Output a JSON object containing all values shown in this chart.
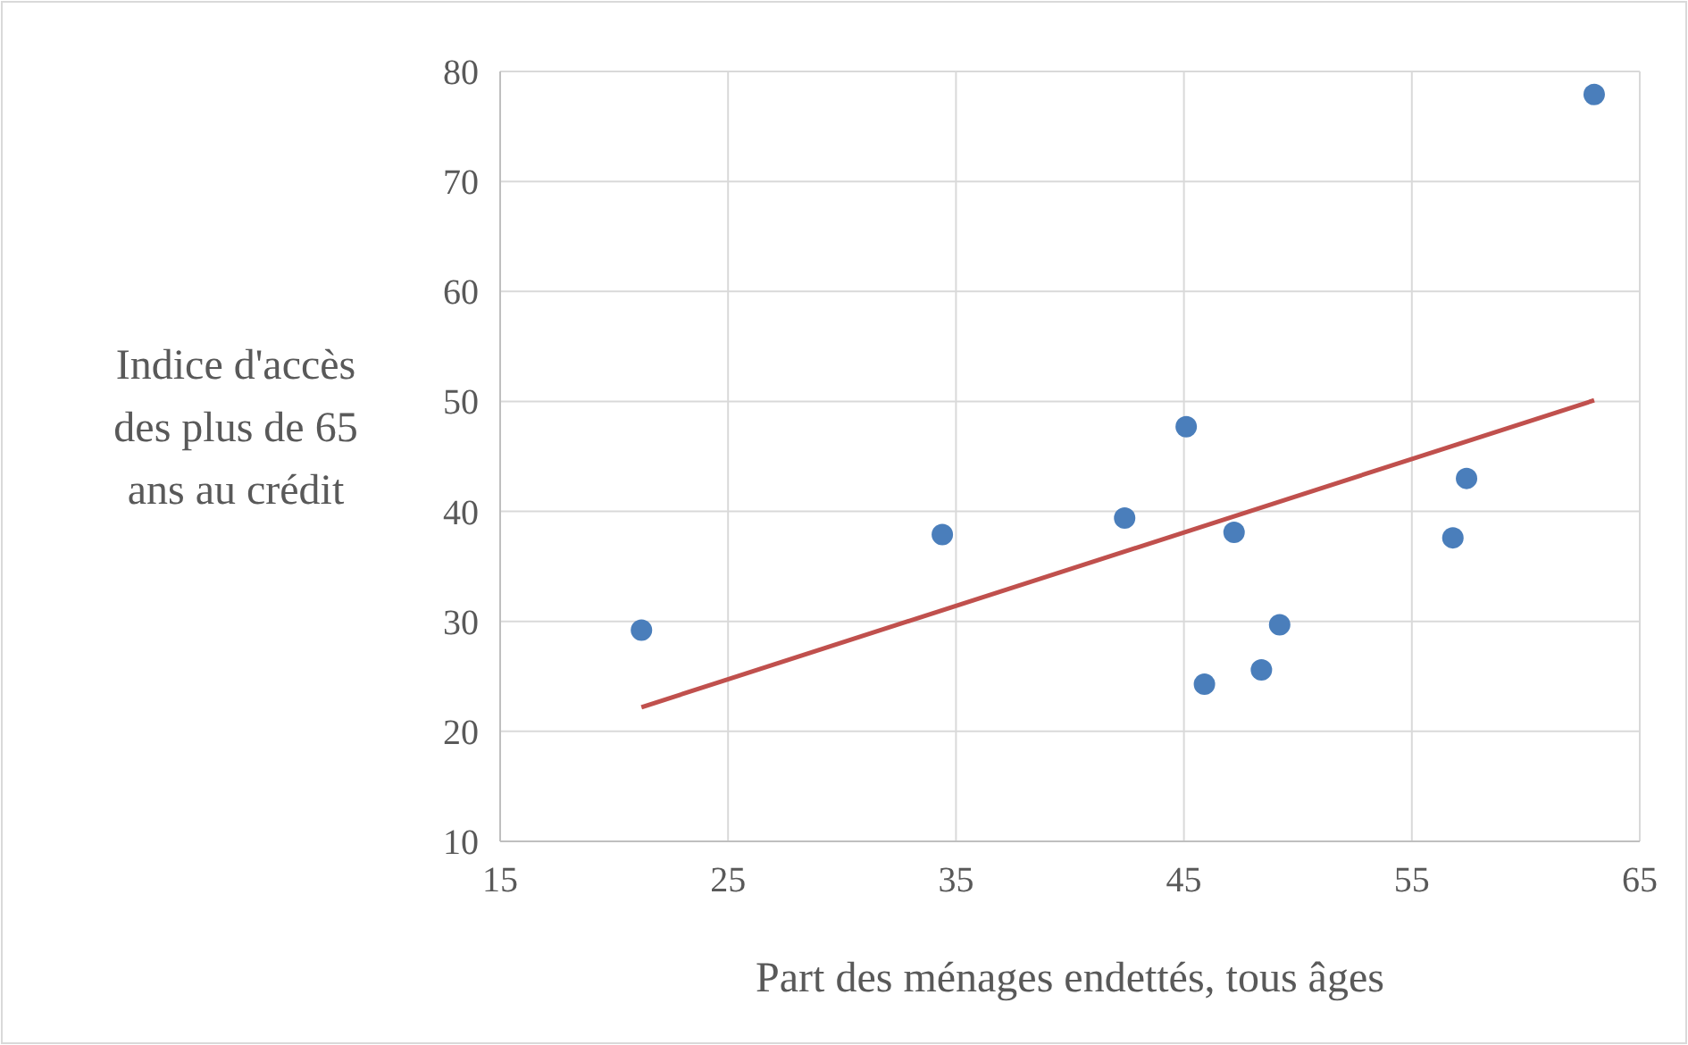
{
  "chart_data": {
    "type": "scatter",
    "xlabel": "Part des ménages endettés, tous âges",
    "ylabel": "Indice d'accès des plus de 65 ans au crédit",
    "xlim": [
      15,
      65
    ],
    "xticks": [
      15,
      25,
      35,
      45,
      55,
      65
    ],
    "ylim": [
      10,
      80
    ],
    "yticks": [
      10,
      20,
      30,
      40,
      50,
      60,
      70,
      80
    ],
    "grid": true,
    "series": [
      {
        "marker": "circle",
        "color": "#4a7ebb",
        "x": [
          21.2,
          34.4,
          42.4,
          45.1,
          47.2,
          45.9,
          48.4,
          49.2,
          56.8,
          57.4,
          63.0
        ],
        "values": [
          29.2,
          37.9,
          39.4,
          47.7,
          38.1,
          24.3,
          25.6,
          29.7,
          37.6,
          43.0,
          77.9
        ]
      },
      {
        "type": "line",
        "color": "#c0504d",
        "x": [
          21.2,
          63.0
        ],
        "values": [
          22.2,
          50.1
        ]
      }
    ]
  }
}
